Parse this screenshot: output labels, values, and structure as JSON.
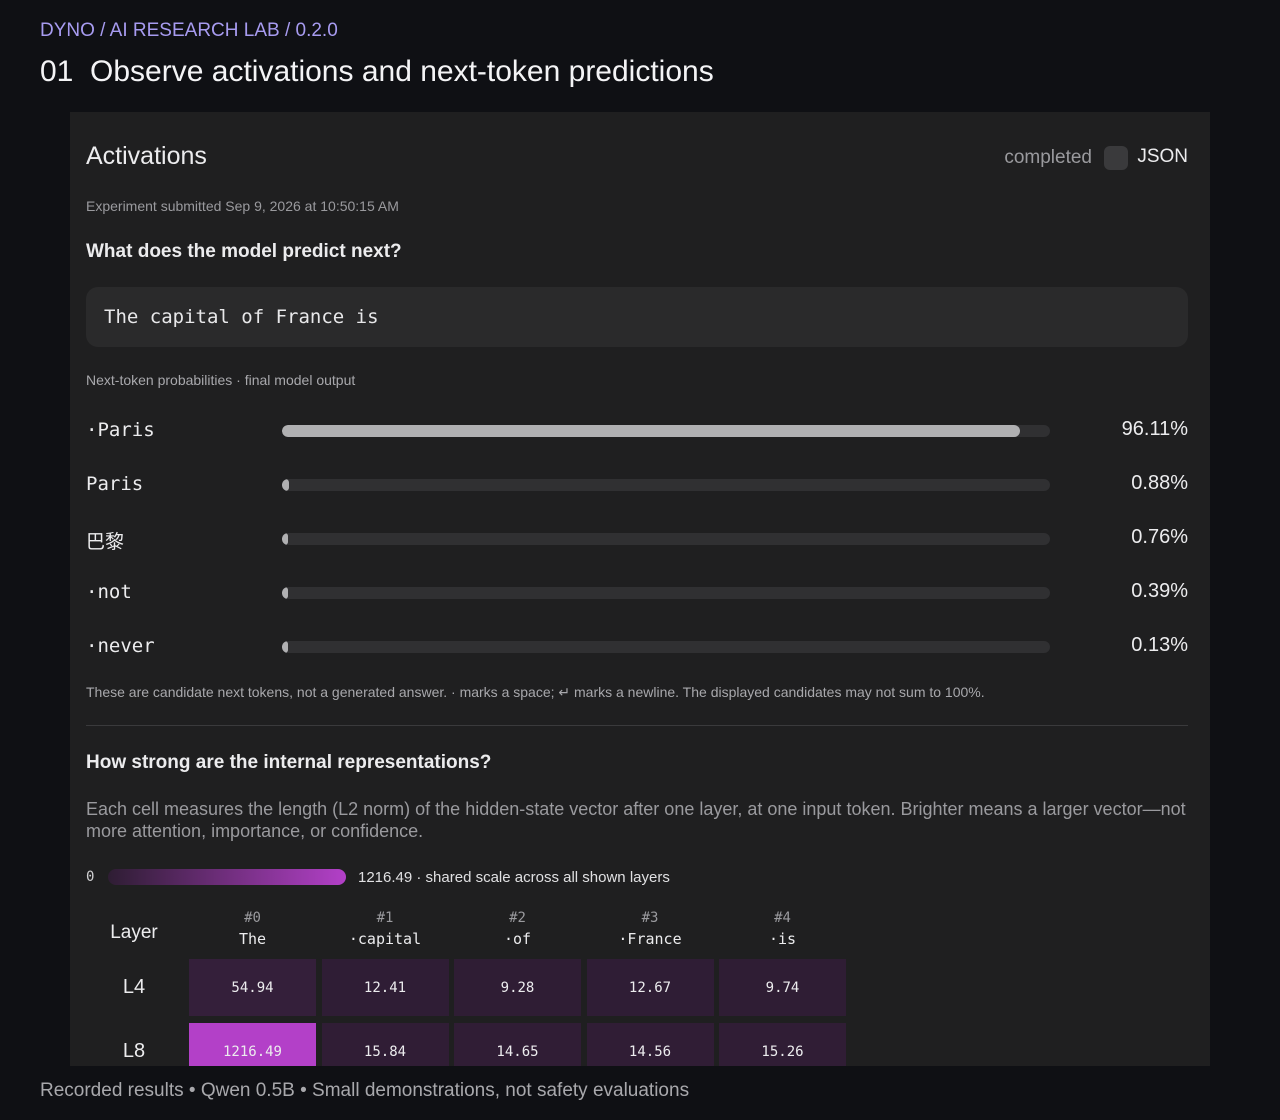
{
  "header": {
    "breadcrumb": "DYNO / AI RESEARCH LAB / 0.2.0",
    "title": "01  Observe activations and next-token predictions"
  },
  "panel": {
    "title": "Activations",
    "status": "completed",
    "json_label": "JSON",
    "submitted": "Experiment submitted Sep 9, 2026 at 10:50:15 AM"
  },
  "predict": {
    "heading": "What does the model predict next?",
    "prompt": "The capital of France is",
    "caption": "Next-token probabilities · final model output",
    "candidates": [
      {
        "token": "·Paris",
        "percent": "96.11%",
        "fraction": 0.9611
      },
      {
        "token": "Paris",
        "percent": "0.88%",
        "fraction": 0.0088
      },
      {
        "token": "巴黎",
        "percent": "0.76%",
        "fraction": 0.0076
      },
      {
        "token": "·not",
        "percent": "0.39%",
        "fraction": 0.0039
      },
      {
        "token": "·never",
        "percent": "0.13%",
        "fraction": 0.0013
      }
    ],
    "note": "These are candidate next tokens, not a generated answer. · marks a space; ↵ marks a newline. The displayed candidates may not sum to 100%."
  },
  "representations": {
    "heading": "How strong are the internal representations?",
    "description": "Each cell measures the length (L2 norm) of the hidden-state vector after one layer, at one input token. Brighter means a larger vector—not more attention, importance, or confidence.",
    "scale_min": "0",
    "scale_max_text": "1216.49 · shared scale across all shown layers",
    "scale_max": 1216.49,
    "low_color": "#2e1d33",
    "high_color": "#b340c8",
    "layer_header": "Layer",
    "columns": [
      {
        "index": "#0",
        "token": "The"
      },
      {
        "index": "#1",
        "token": "·capital"
      },
      {
        "index": "#2",
        "token": "·of"
      },
      {
        "index": "#3",
        "token": "·France"
      },
      {
        "index": "#4",
        "token": "·is"
      }
    ],
    "rows": [
      {
        "layer": "L4",
        "values": [
          "54.94",
          "12.41",
          "9.28",
          "12.67",
          "9.74"
        ]
      },
      {
        "layer": "L8",
        "values": [
          "1216.49",
          "15.84",
          "14.65",
          "14.56",
          "15.26"
        ]
      }
    ]
  },
  "footer": {
    "text": "Recorded results • Qwen 0.5B • Small demonstrations, not safety evaluations"
  }
}
